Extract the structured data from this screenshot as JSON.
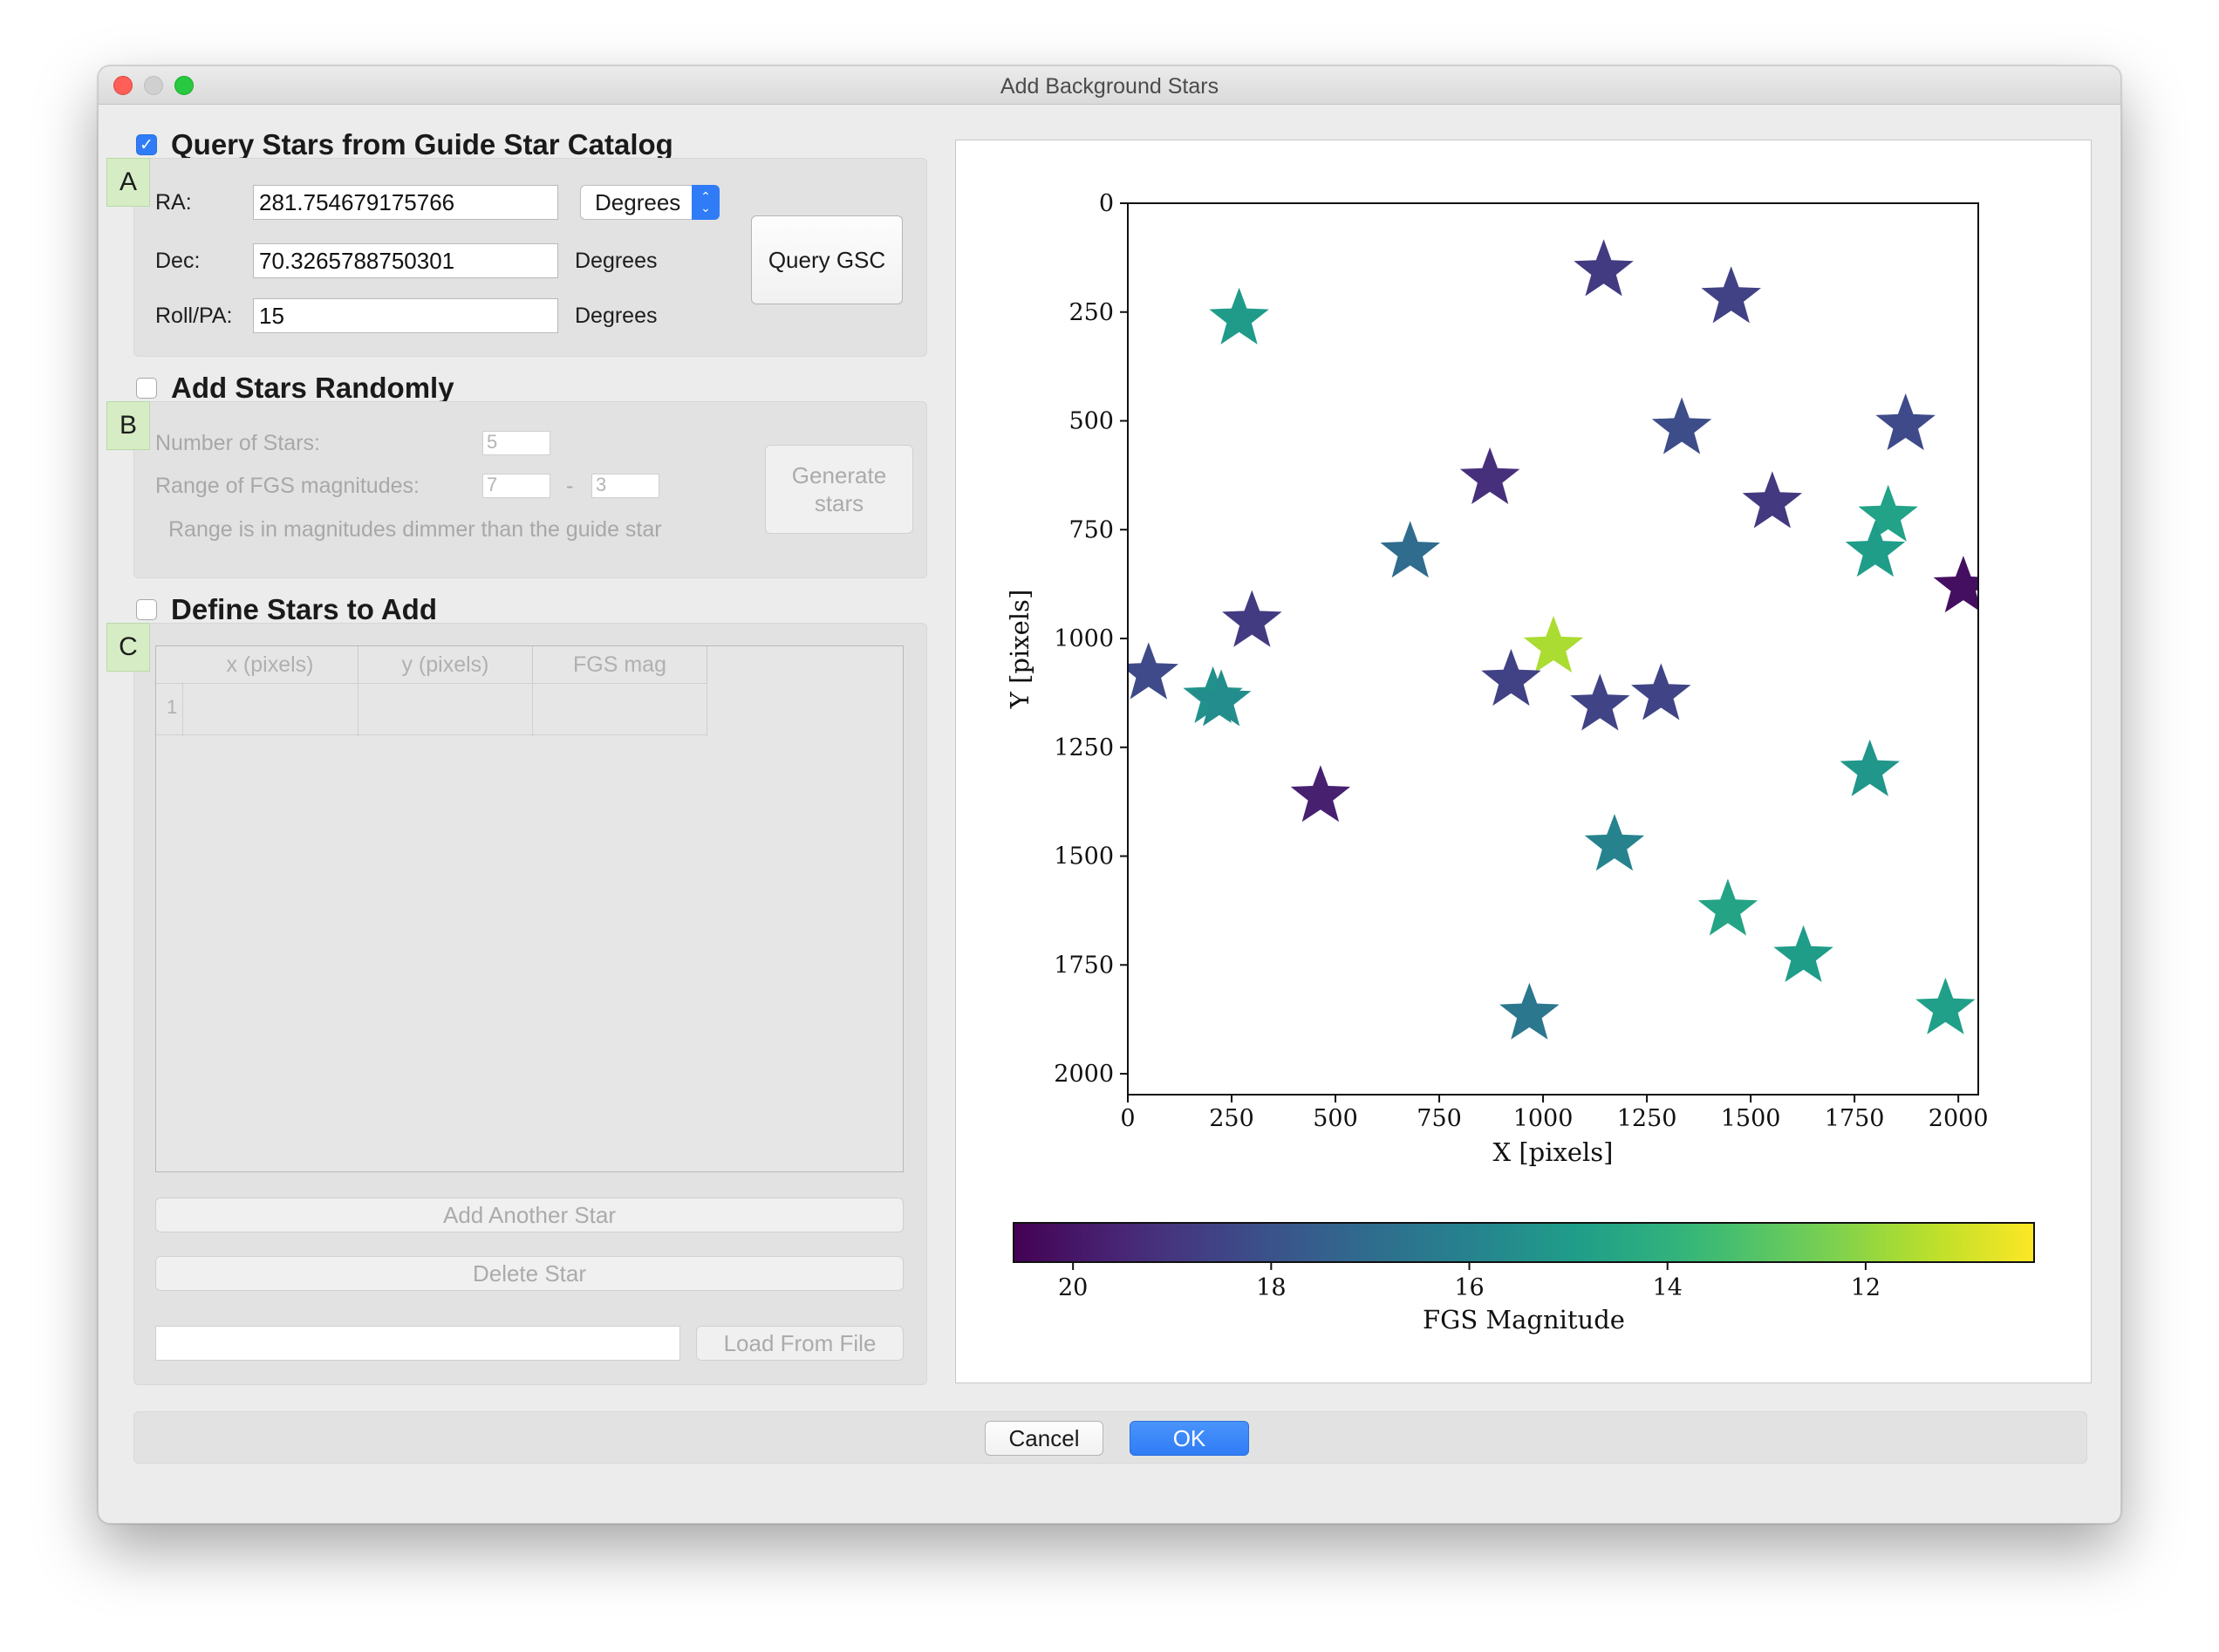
{
  "window": {
    "title": "Add Background Stars"
  },
  "section_a": {
    "checked": true,
    "heading": "Query Stars from Guide Star Catalog",
    "letter": "A",
    "ra_label": "RA:",
    "ra_value": "281.754679175766",
    "ra_unit_select": "Degrees",
    "dec_label": "Dec:",
    "dec_value": "70.3265788750301",
    "dec_unit": "Degrees",
    "roll_label": "Roll/PA:",
    "roll_value": "15",
    "roll_unit": "Degrees",
    "query_button": "Query GSC"
  },
  "section_b": {
    "checked": false,
    "heading": "Add Stars Randomly",
    "letter": "B",
    "num_stars_label": "Number of Stars:",
    "num_stars_value": "5",
    "range_label": "Range of FGS magnitudes:",
    "range_min": "7",
    "range_dash": "-",
    "range_max": "3",
    "note": "Range is in magnitudes dimmer than the guide star",
    "generate_button_line1": "Generate",
    "generate_button_line2": "stars"
  },
  "section_c": {
    "checked": false,
    "heading": "Define Stars to Add",
    "letter": "C",
    "columns": [
      "x (pixels)",
      "y (pixels)",
      "FGS mag"
    ],
    "row_number": "1",
    "add_button": "Add Another Star",
    "delete_button": "Delete Star",
    "file_path_value": "",
    "load_button": "Load From File"
  },
  "footer": {
    "cancel": "Cancel",
    "ok": "OK"
  },
  "chart_data": {
    "type": "scatter",
    "marker": "star",
    "xlabel": "X [pixels]",
    "ylabel": "Y [pixels]",
    "xlim": [
      0,
      2048
    ],
    "ylim": [
      2048,
      0
    ],
    "xticks": [
      0,
      250,
      500,
      750,
      1000,
      1250,
      1500,
      1750,
      2000
    ],
    "yticks": [
      0,
      250,
      500,
      750,
      1000,
      1250,
      1500,
      1750,
      2000
    ],
    "colorbar": {
      "label": "FGS Magnitude",
      "colormap": "viridis_r",
      "range": [
        20.6,
        10.3
      ],
      "ticks": [
        20,
        18,
        16,
        14,
        12
      ]
    },
    "points": [
      {
        "x": 1146,
        "y": 155,
        "mag": 18.8
      },
      {
        "x": 1453,
        "y": 217,
        "mag": 18.6
      },
      {
        "x": 268,
        "y": 266,
        "mag": 15.0
      },
      {
        "x": 1334,
        "y": 518,
        "mag": 18.2
      },
      {
        "x": 1873,
        "y": 509,
        "mag": 18.3
      },
      {
        "x": 872,
        "y": 633,
        "mag": 19.2
      },
      {
        "x": 1552,
        "y": 688,
        "mag": 18.9
      },
      {
        "x": 1831,
        "y": 719,
        "mag": 14.7
      },
      {
        "x": 680,
        "y": 802,
        "mag": 17.0
      },
      {
        "x": 1800,
        "y": 800,
        "mag": 14.9
      },
      {
        "x": 2012,
        "y": 882,
        "mag": 20.2
      },
      {
        "x": 299,
        "y": 961,
        "mag": 18.8
      },
      {
        "x": 1025,
        "y": 1020,
        "mag": 11.6
      },
      {
        "x": 50,
        "y": 1081,
        "mag": 18.3
      },
      {
        "x": 923,
        "y": 1096,
        "mag": 18.6
      },
      {
        "x": 1284,
        "y": 1129,
        "mag": 18.5
      },
      {
        "x": 1137,
        "y": 1153,
        "mag": 18.5
      },
      {
        "x": 205,
        "y": 1136,
        "mag": 15.4
      },
      {
        "x": 225,
        "y": 1143,
        "mag": 15.6
      },
      {
        "x": 464,
        "y": 1363,
        "mag": 19.7
      },
      {
        "x": 1787,
        "y": 1304,
        "mag": 15.2
      },
      {
        "x": 1172,
        "y": 1475,
        "mag": 16.0
      },
      {
        "x": 1445,
        "y": 1624,
        "mag": 14.6
      },
      {
        "x": 1627,
        "y": 1731,
        "mag": 14.9
      },
      {
        "x": 967,
        "y": 1863,
        "mag": 16.5
      },
      {
        "x": 1969,
        "y": 1851,
        "mag": 14.8
      }
    ]
  }
}
